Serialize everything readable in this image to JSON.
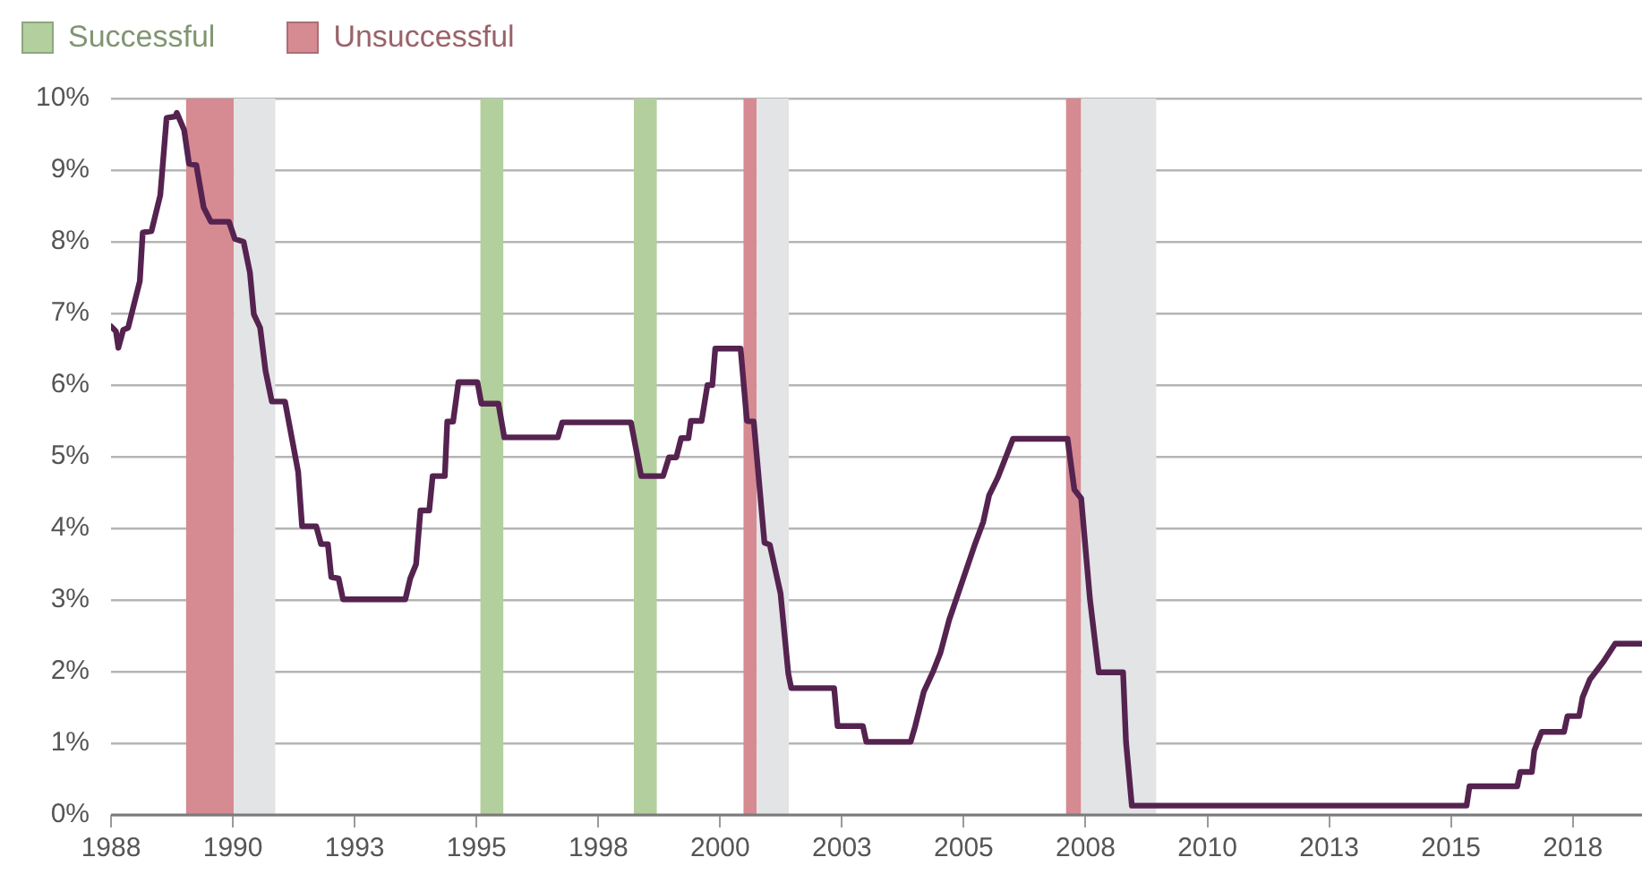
{
  "chart_data": {
    "type": "line",
    "legend": "top left",
    "grid": "y",
    "marker": "none",
    "line_style": "solid",
    "xlim": [
      1988,
      2019.42
    ],
    "xticks": [
      {
        "value": 1988,
        "label": "1988"
      },
      {
        "value": 1990.5,
        "label": "1990"
      },
      {
        "value": 1993,
        "label": "1993"
      },
      {
        "value": 1995.5,
        "label": "1995"
      },
      {
        "value": 1998,
        "label": "1998"
      },
      {
        "value": 2000.5,
        "label": "2000"
      },
      {
        "value": 2003,
        "label": "2003"
      },
      {
        "value": 2005.5,
        "label": "2005"
      },
      {
        "value": 2008,
        "label": "2008"
      },
      {
        "value": 2010.5,
        "label": "2010"
      },
      {
        "value": 2013,
        "label": "2013"
      },
      {
        "value": 2015.5,
        "label": "2015"
      },
      {
        "value": 2018,
        "label": "2018"
      }
    ],
    "ylim": [
      0,
      10
    ],
    "yticks": [
      {
        "value": 0,
        "label": "0%"
      },
      {
        "value": 1,
        "label": "1%"
      },
      {
        "value": 2,
        "label": "2%"
      },
      {
        "value": 3,
        "label": "3%"
      },
      {
        "value": 4,
        "label": "4%"
      },
      {
        "value": 5,
        "label": "5%"
      },
      {
        "value": 6,
        "label": "6%"
      },
      {
        "value": 7,
        "label": "7%"
      },
      {
        "value": 8,
        "label": "8%"
      },
      {
        "value": 9,
        "label": "9%"
      },
      {
        "value": 10,
        "label": "10%"
      }
    ],
    "bands": [
      {
        "axis": "x",
        "from": 1995.58,
        "to": 1996.05,
        "label": "Successful",
        "color": "#b3cf9d"
      },
      {
        "axis": "x",
        "from": 1989.54,
        "to": 1990.52,
        "label": "Unsuccessful",
        "color": "#d68a92"
      },
      {
        "axis": "x",
        "from": 1990.52,
        "to": 1991.37,
        "color": "#e3e4e6"
      },
      {
        "axis": "x",
        "from": 1998.73,
        "to": 1999.2,
        "color": "#b3cf9d"
      },
      {
        "axis": "x",
        "from": 2000.98,
        "to": 2001.25,
        "color": "#d68a92"
      },
      {
        "axis": "x",
        "from": 2001.25,
        "to": 2001.91,
        "color": "#e3e4e6"
      },
      {
        "axis": "x",
        "from": 2007.6,
        "to": 2007.91,
        "color": "#d68a92"
      },
      {
        "axis": "x",
        "from": 2007.91,
        "to": 2009.45,
        "color": "#e3e4e6"
      }
    ],
    "series": [
      {
        "color": "#55234f",
        "x": [
          1988.0,
          1988.1,
          1988.15,
          1988.25,
          1988.35,
          1988.59,
          1988.65,
          1988.83,
          1989.01,
          1989.14,
          1989.32,
          1989.35,
          1989.5,
          1989.6,
          1989.75,
          1989.9,
          1990.05,
          1990.42,
          1990.54,
          1990.72,
          1990.85,
          1990.93,
          1991.06,
          1991.17,
          1991.3,
          1991.57,
          1991.84,
          1991.92,
          1992.21,
          1992.31,
          1992.45,
          1992.52,
          1992.67,
          1992.76,
          1994.04,
          1994.14,
          1994.26,
          1994.35,
          1994.53,
          1994.6,
          1994.85,
          1994.9,
          1995.02,
          1995.13,
          1995.52,
          1995.6,
          1995.95,
          1996.07,
          1997.17,
          1997.26,
          1998.67,
          1998.88,
          1999.33,
          1999.45,
          1999.6,
          1999.7,
          1999.85,
          1999.9,
          2000.12,
          2000.24,
          2000.34,
          2000.4,
          2000.92,
          2001.05,
          2001.19,
          2001.41,
          2001.52,
          2001.74,
          2001.9,
          2001.96,
          2002.84,
          2002.91,
          2003.43,
          2003.5,
          2004.41,
          2004.5,
          2004.68,
          2004.87,
          2005.02,
          2005.2,
          2005.47,
          2005.72,
          2005.9,
          2006.02,
          2006.2,
          2006.51,
          2007.63,
          2007.77,
          2007.91,
          2008.09,
          2008.27,
          2008.77,
          2008.83,
          2008.95,
          2015.82,
          2015.88,
          2016.86,
          2016.92,
          2017.16,
          2017.21,
          2017.36,
          2017.82,
          2017.89,
          2018.13,
          2018.2,
          2018.35,
          2018.63,
          2018.87,
          2019.42
        ],
        "values": [
          6.82,
          6.75,
          6.52,
          6.77,
          6.8,
          7.45,
          8.13,
          8.15,
          8.65,
          9.73,
          9.75,
          9.8,
          9.56,
          9.09,
          9.07,
          8.48,
          8.28,
          8.28,
          8.04,
          8.0,
          7.57,
          6.99,
          6.8,
          6.2,
          5.77,
          5.77,
          4.79,
          4.03,
          4.03,
          3.78,
          3.78,
          3.32,
          3.3,
          3.01,
          3.01,
          3.3,
          3.5,
          4.25,
          4.25,
          4.73,
          4.73,
          5.49,
          5.49,
          6.04,
          6.04,
          5.74,
          5.74,
          5.27,
          5.27,
          5.48,
          5.48,
          4.73,
          4.73,
          4.99,
          4.99,
          5.26,
          5.26,
          5.5,
          5.5,
          6.0,
          6.0,
          6.51,
          6.51,
          5.5,
          5.49,
          3.8,
          3.77,
          3.09,
          1.97,
          1.77,
          1.77,
          1.24,
          1.24,
          1.02,
          1.02,
          1.23,
          1.72,
          2.0,
          2.26,
          2.72,
          3.26,
          3.76,
          4.09,
          4.46,
          4.71,
          5.25,
          5.25,
          4.54,
          4.42,
          3.01,
          1.99,
          1.99,
          1.02,
          0.13,
          0.13,
          0.4,
          0.4,
          0.6,
          0.6,
          0.9,
          1.16,
          1.16,
          1.38,
          1.38,
          1.64,
          1.89,
          2.14,
          2.39,
          2.39
        ]
      }
    ]
  }
}
